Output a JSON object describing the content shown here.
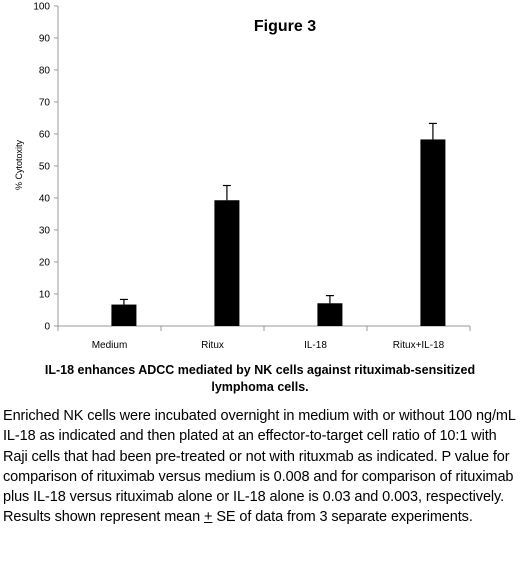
{
  "chart_data": {
    "type": "bar",
    "title": "Figure 3",
    "ylabel": "% Cytotoxity",
    "xlabel": "",
    "categories": [
      "Medium",
      "Ritux",
      "IL-18",
      "Ritux+IL-18"
    ],
    "values": [
      6.7,
      39.3,
      7.1,
      58.3
    ],
    "errors": [
      1.6,
      4.6,
      2.4,
      5.0
    ],
    "ylim": [
      0,
      100
    ],
    "yticks": [
      0,
      10,
      20,
      30,
      40,
      50,
      60,
      70,
      80,
      90,
      100
    ],
    "grid": false,
    "legend": "none",
    "bar_color": "#000000"
  },
  "caption": {
    "title": "IL-18 enhances ADCC mediated by NK cells against rituximab-sensitized lymphoma cells.",
    "body_before": "Enriched NK cells were incubated overnight in medium with or without 100 ng/mL IL-18 as indicated and then plated at an effector-to-target cell ratio of 10:1 with Raji cells that had been pre-treated or not with rituxmab as indicated.  P value for comparison of rituximab versus medium is 0.008 and for comparison of rituximab plus IL-18 versus rituximab alone or IL-18 alone is 0.03 and 0.003, respectively. Results shown represent mean ",
    "plus_minus": "+",
    "body_after": " SE of data from 3 separate experiments."
  }
}
